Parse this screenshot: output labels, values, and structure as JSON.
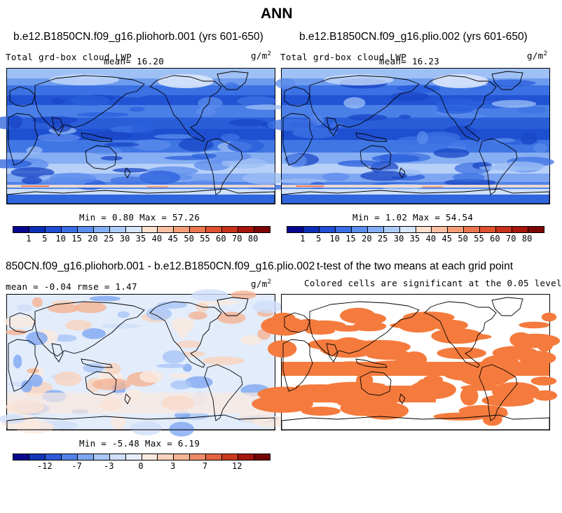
{
  "figure": {
    "title": "ANN"
  },
  "panels": [
    {
      "title": "b.e12.B1850CN.f09_g16.pliohorb.001 (yrs 601-650)",
      "left_label": "Total grd-box cloud LWP",
      "mean_label": "mean=  16.20",
      "units": "g/m",
      "units_sup": "2",
      "minmax": "Min =   0.80 Max =  57.26",
      "style": "abs"
    },
    {
      "title": "b.e12.B1850CN.f09_g16.plio.002 (yrs 601-650)",
      "left_label": "Total grd-box cloud LWP",
      "mean_label": "mean=  16.23",
      "units": "g/m",
      "units_sup": "2",
      "minmax": "Min =   1.02 Max =  54.54",
      "style": "abs"
    },
    {
      "title": "850CN.f09_g16.pliohorb.001 - b.e12.B1850CN.f09_g16.plio.002",
      "left_label": "mean =  -0.04    rmse =   1.47",
      "units": "g/m",
      "units_sup": "2",
      "minmax": "Min =  -5.48 Max =   6.19",
      "style": "diff"
    },
    {
      "title": "t-test of the two means at each grid point",
      "subtitle": "Colored cells are significant at the 0.05 level",
      "style": "sig"
    }
  ],
  "colorbars": {
    "abs": {
      "colors": [
        "#08088f",
        "#0d2fb8",
        "#1f4fd6",
        "#3a6ee6",
        "#5b8ef0",
        "#84aef5",
        "#aeccf9",
        "#d6e6fb",
        "#fbe0ce",
        "#f9c0a4",
        "#f49d78",
        "#ec7650",
        "#e0522f",
        "#c8311a",
        "#a8150d",
        "#7c0606"
      ],
      "labels": [
        "1",
        "5",
        "10",
        "15",
        "20",
        "25",
        "30",
        "35",
        "40",
        "45",
        "50",
        "55",
        "60",
        "70",
        "80"
      ]
    },
    "diff": {
      "colors": [
        "#08088f",
        "#1236b8",
        "#2f5ad6",
        "#5282e8",
        "#7fa7f1",
        "#a9c6f7",
        "#cfdff9",
        "#e6effb",
        "#fbeadf",
        "#f9d3bd",
        "#f5b394",
        "#ef8c68",
        "#e4623f",
        "#cb3a1d",
        "#a5170d",
        "#730505"
      ],
      "labels": [
        "-12",
        "-7",
        "-3",
        "0",
        "3",
        "7",
        "12"
      ]
    }
  },
  "colors": {
    "sig_fill": "#f47b3d",
    "abs_base": "#2d63dd",
    "diff_base": "#d4e2f8"
  }
}
